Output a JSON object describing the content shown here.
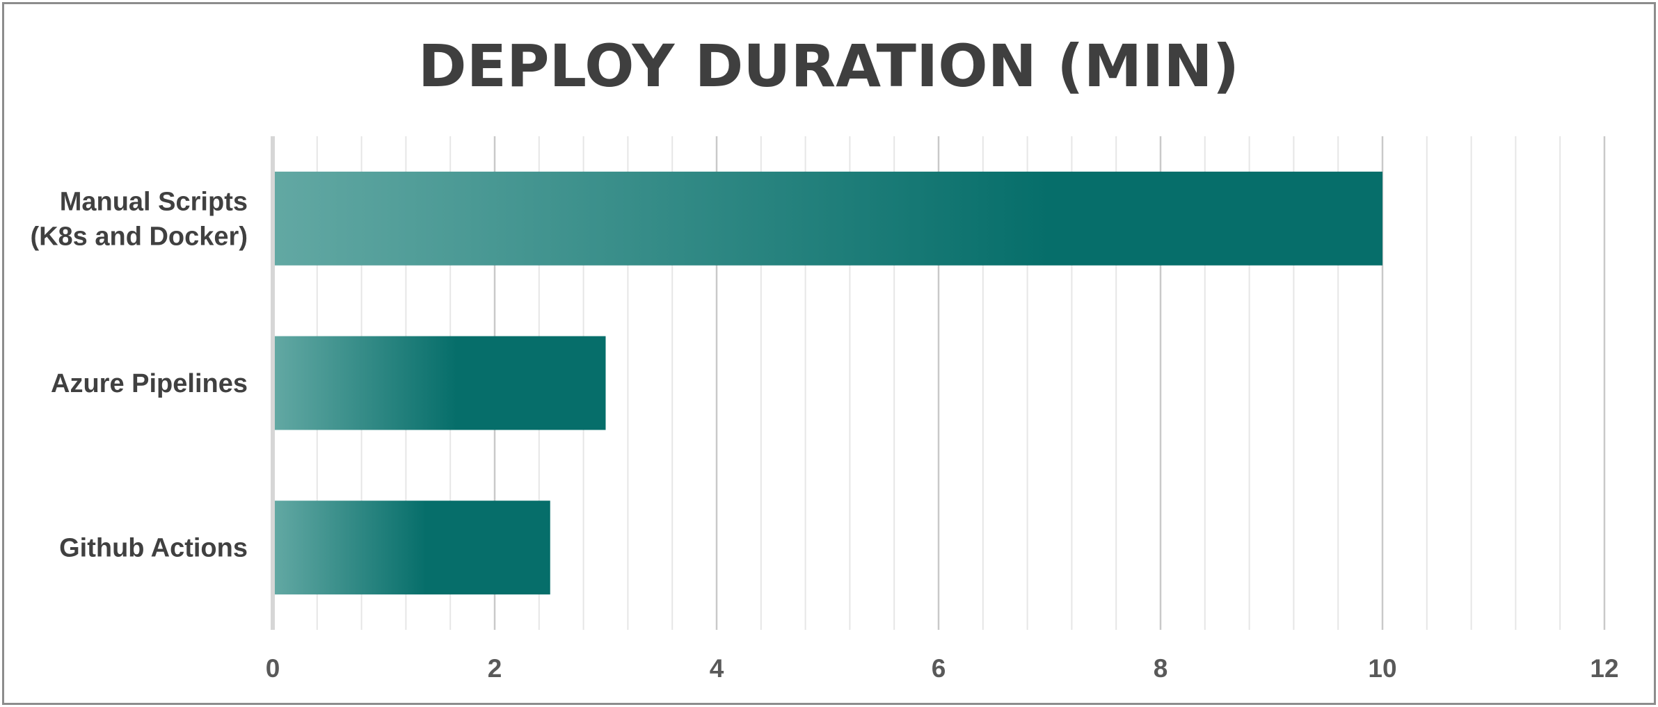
{
  "chart_data": {
    "type": "bar",
    "orientation": "horizontal",
    "title": "DEPLOY DURATION (MIN)",
    "xlabel": "",
    "ylabel": "",
    "categories": [
      [
        "Manual Scripts",
        "(K8s and Docker)"
      ],
      [
        "Azure Pipelines"
      ],
      [
        "Github Actions"
      ]
    ],
    "values": [
      10,
      3,
      2.5
    ],
    "xlim": [
      0,
      12
    ],
    "x_ticks": [
      0,
      2,
      4,
      6,
      8,
      10,
      12
    ],
    "x_tick_labels": [
      "0",
      "2",
      "4",
      "6",
      "8",
      "10",
      "12"
    ],
    "minor_step": 0.4,
    "grid": "vertical",
    "legend": "none",
    "colors": {
      "bar_dark": "#066e6a",
      "bar_light": "#62a8a3",
      "grid_major": "#c9c9c9",
      "grid_minor": "#e6e6e6",
      "axis": "#d6d6d6",
      "text": "#404040",
      "frame": "#8c8c8c"
    }
  }
}
